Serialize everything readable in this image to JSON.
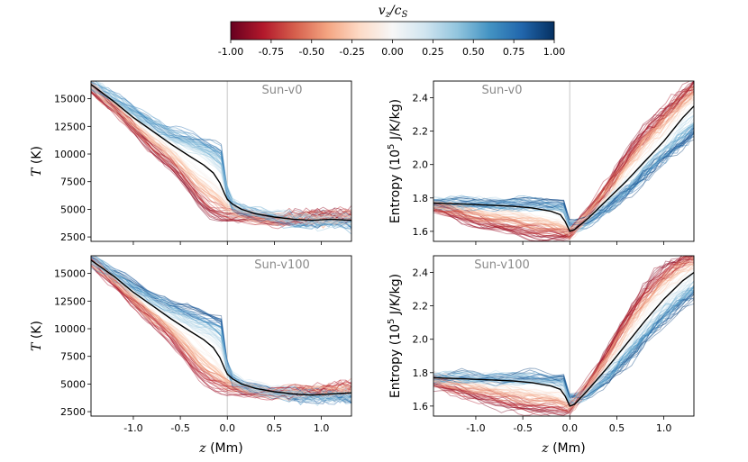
{
  "colorbar": {
    "label": "v_z/c_S",
    "label_main": "v",
    "label_sub1": "z",
    "label_sep": "/c",
    "label_sub2": "S",
    "ticks": [
      "-1.00",
      "-0.75",
      "-0.50",
      "-0.25",
      "0.00",
      "0.25",
      "0.50",
      "0.75",
      "1.00"
    ],
    "range": [
      -1.0,
      1.0
    ],
    "colors": [
      "#67001f",
      "#b2182b",
      "#d6604d",
      "#f4a582",
      "#fddbc7",
      "#f7f7f7",
      "#d1e5f0",
      "#92c5de",
      "#4393c3",
      "#2166ac",
      "#053061"
    ]
  },
  "chart_data": [
    {
      "type": "line",
      "id": "temp-v0",
      "title": "Sun-v0",
      "xlabel_var": "z",
      "xlabel_unit": " (Mm)",
      "ylabel_var": "T",
      "ylabel_unit": " (K)",
      "xlim": [
        -1.45,
        1.32
      ],
      "ylim": [
        2100,
        16600
      ],
      "xticks": [
        -1.0,
        -0.5,
        0.0,
        0.5,
        1.0
      ],
      "xtick_labels": [
        "-1.0",
        "-0.5",
        "0.0",
        "0.5",
        "1.0"
      ],
      "yticks": [
        2500,
        5000,
        7500,
        10000,
        12500,
        15000
      ],
      "ytick_labels": [
        "2500",
        "5000",
        "7500",
        "10000",
        "12500",
        "15000"
      ],
      "show_xticklabels": false,
      "vline": 0,
      "mean_profile": {
        "x": [
          -1.45,
          -1.2,
          -1.0,
          -0.8,
          -0.6,
          -0.4,
          -0.25,
          -0.15,
          -0.08,
          -0.03,
          0.0,
          0.05,
          0.15,
          0.3,
          0.5,
          0.7,
          0.9,
          1.1,
          1.32
        ],
        "y": [
          16300,
          14700,
          13300,
          12100,
          10900,
          9800,
          9000,
          8300,
          7400,
          6400,
          5900,
          5500,
          5000,
          4600,
          4300,
          4100,
          4000,
          4100,
          4000
        ]
      },
      "down_profile": {
        "x": [
          -1.45,
          -1.2,
          -1.0,
          -0.8,
          -0.6,
          -0.5,
          -0.4,
          -0.3,
          -0.2,
          -0.1,
          0.0,
          0.2,
          0.5,
          0.8,
          1.1,
          1.32
        ],
        "y": [
          16000,
          14000,
          12300,
          10600,
          9000,
          8000,
          6900,
          5800,
          5000,
          4600,
          4400,
          4200,
          4000,
          4300,
          4500,
          4600
        ]
      },
      "up_profile": {
        "x": [
          -1.45,
          -1.2,
          -1.0,
          -0.8,
          -0.6,
          -0.4,
          -0.2,
          -0.05,
          0.0,
          0.03,
          0.2,
          0.5,
          0.8,
          1.1,
          1.32
        ],
        "y": [
          16400,
          15100,
          14000,
          13000,
          12200,
          11600,
          11000,
          10600,
          6500,
          5500,
          4700,
          4200,
          3900,
          3800,
          3700
        ]
      }
    },
    {
      "type": "line",
      "id": "entropy-v0",
      "title": "Sun-v0",
      "xlabel_var": "z",
      "xlabel_unit": " (Mm)",
      "ylabel_pre": "Entropy (10",
      "ylabel_sup": "5",
      "ylabel_post": " J/K/kg)",
      "xlim": [
        -1.45,
        1.32
      ],
      "ylim": [
        1.54,
        2.5
      ],
      "xticks": [
        -1.0,
        -0.5,
        0.0,
        0.5,
        1.0
      ],
      "xtick_labels": [
        "-1.0",
        "-0.5",
        "0.0",
        "0.5",
        "1.0"
      ],
      "yticks": [
        1.6,
        1.8,
        2.0,
        2.2,
        2.4
      ],
      "ytick_labels": [
        "1.6",
        "1.8",
        "2.0",
        "2.2",
        "2.4"
      ],
      "show_xticklabels": false,
      "vline": 0,
      "mean_profile": {
        "x": [
          -1.45,
          -1.2,
          -1.0,
          -0.8,
          -0.6,
          -0.4,
          -0.2,
          -0.1,
          -0.05,
          0.0,
          0.05,
          0.2,
          0.4,
          0.6,
          0.8,
          1.0,
          1.2,
          1.32
        ],
        "y": [
          1.77,
          1.765,
          1.76,
          1.755,
          1.75,
          1.74,
          1.72,
          1.7,
          1.66,
          1.6,
          1.61,
          1.68,
          1.79,
          1.9,
          2.02,
          2.14,
          2.28,
          2.35
        ]
      },
      "down_profile": {
        "x": [
          -1.45,
          -1.2,
          -1.0,
          -0.8,
          -0.6,
          -0.4,
          -0.2,
          -0.05,
          0.0,
          0.2,
          0.4,
          0.6,
          0.8,
          1.0,
          1.2,
          1.32
        ],
        "y": [
          1.74,
          1.7,
          1.66,
          1.63,
          1.61,
          1.59,
          1.58,
          1.57,
          1.58,
          1.72,
          1.88,
          2.05,
          2.2,
          2.32,
          2.43,
          2.48
        ]
      },
      "up_profile": {
        "x": [
          -1.45,
          -1.2,
          -1.0,
          -0.8,
          -0.6,
          -0.4,
          -0.2,
          -0.05,
          0.0,
          0.2,
          0.4,
          0.6,
          0.8,
          1.0,
          1.2,
          1.32
        ],
        "y": [
          1.77,
          1.77,
          1.77,
          1.77,
          1.77,
          1.77,
          1.77,
          1.77,
          1.64,
          1.66,
          1.74,
          1.84,
          1.94,
          2.04,
          2.14,
          2.2
        ]
      }
    },
    {
      "type": "line",
      "id": "temp-v100",
      "title": "Sun-v100",
      "xlabel_var": "z",
      "xlabel_unit": " (Mm)",
      "ylabel_var": "T",
      "ylabel_unit": " (K)",
      "xlim": [
        -1.45,
        1.32
      ],
      "ylim": [
        2100,
        16600
      ],
      "xticks": [
        -1.0,
        -0.5,
        0.0,
        0.5,
        1.0
      ],
      "xtick_labels": [
        "-1.0",
        "-0.5",
        "0.0",
        "0.5",
        "1.0"
      ],
      "yticks": [
        2500,
        5000,
        7500,
        10000,
        12500,
        15000
      ],
      "ytick_labels": [
        "2500",
        "5000",
        "7500",
        "10000",
        "12500",
        "15000"
      ],
      "show_xticklabels": true,
      "vline": 0,
      "mean_profile": {
        "x": [
          -1.45,
          -1.2,
          -1.0,
          -0.8,
          -0.6,
          -0.4,
          -0.25,
          -0.15,
          -0.08,
          -0.03,
          0.0,
          0.05,
          0.15,
          0.3,
          0.5,
          0.7,
          0.9,
          1.1,
          1.32
        ],
        "y": [
          16200,
          14700,
          13300,
          12100,
          10900,
          9800,
          9000,
          8300,
          7400,
          6400,
          5900,
          5500,
          5000,
          4600,
          4300,
          4100,
          4000,
          4100,
          4200
        ]
      },
      "down_profile": {
        "x": [
          -1.45,
          -1.2,
          -1.0,
          -0.8,
          -0.6,
          -0.5,
          -0.4,
          -0.3,
          -0.2,
          -0.1,
          0.0,
          0.2,
          0.5,
          0.8,
          1.1,
          1.32
        ],
        "y": [
          16000,
          14000,
          12300,
          10600,
          9000,
          8000,
          6900,
          5800,
          5000,
          4600,
          4400,
          4200,
          4100,
          4400,
          4600,
          4700
        ]
      },
      "up_profile": {
        "x": [
          -1.45,
          -1.2,
          -1.0,
          -0.8,
          -0.6,
          -0.4,
          -0.2,
          -0.05,
          0.0,
          0.03,
          0.2,
          0.5,
          0.8,
          1.1,
          1.32
        ],
        "y": [
          16300,
          15000,
          14000,
          13000,
          12200,
          11600,
          11000,
          10600,
          6500,
          5500,
          4700,
          4200,
          3900,
          3800,
          3700
        ]
      }
    },
    {
      "type": "line",
      "id": "entropy-v100",
      "title": "Sun-v100",
      "xlabel_var": "z",
      "xlabel_unit": " (Mm)",
      "ylabel_pre": "Entropy (10",
      "ylabel_sup": "5",
      "ylabel_post": " J/K/kg)",
      "xlim": [
        -1.45,
        1.32
      ],
      "ylim": [
        1.54,
        2.5
      ],
      "xticks": [
        -1.0,
        -0.5,
        0.0,
        0.5,
        1.0
      ],
      "xtick_labels": [
        "-1.0",
        "-0.5",
        "0.0",
        "0.5",
        "1.0"
      ],
      "yticks": [
        1.6,
        1.8,
        2.0,
        2.2,
        2.4
      ],
      "ytick_labels": [
        "1.6",
        "1.8",
        "2.0",
        "2.2",
        "2.4"
      ],
      "show_xticklabels": true,
      "vline": 0,
      "mean_profile": {
        "x": [
          -1.45,
          -1.2,
          -1.0,
          -0.8,
          -0.6,
          -0.4,
          -0.2,
          -0.1,
          -0.05,
          0.0,
          0.05,
          0.2,
          0.4,
          0.6,
          0.8,
          1.0,
          1.2,
          1.32
        ],
        "y": [
          1.77,
          1.765,
          1.76,
          1.755,
          1.75,
          1.74,
          1.72,
          1.7,
          1.66,
          1.6,
          1.61,
          1.7,
          1.83,
          1.97,
          2.11,
          2.24,
          2.35,
          2.4
        ]
      },
      "down_profile": {
        "x": [
          -1.45,
          -1.2,
          -1.0,
          -0.8,
          -0.6,
          -0.4,
          -0.2,
          -0.05,
          0.0,
          0.2,
          0.4,
          0.6,
          0.8,
          1.0,
          1.2,
          1.32
        ],
        "y": [
          1.74,
          1.7,
          1.66,
          1.63,
          1.61,
          1.59,
          1.58,
          1.57,
          1.58,
          1.74,
          1.93,
          2.12,
          2.3,
          2.42,
          2.48,
          2.5
        ]
      },
      "up_profile": {
        "x": [
          -1.45,
          -1.2,
          -1.0,
          -0.8,
          -0.6,
          -0.4,
          -0.2,
          -0.05,
          0.0,
          0.2,
          0.4,
          0.6,
          0.8,
          1.0,
          1.2,
          1.32
        ],
        "y": [
          1.77,
          1.77,
          1.77,
          1.77,
          1.77,
          1.77,
          1.77,
          1.77,
          1.64,
          1.67,
          1.76,
          1.88,
          2.0,
          2.12,
          2.22,
          2.28
        ]
      }
    }
  ]
}
